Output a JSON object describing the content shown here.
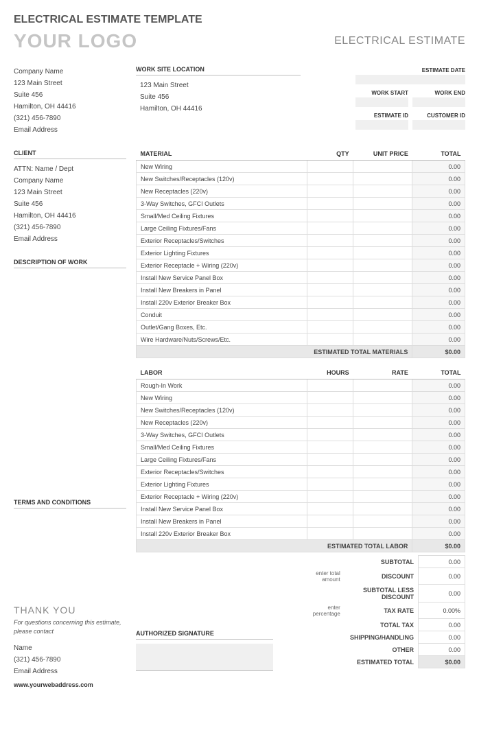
{
  "page_title": "ELECTRICAL ESTIMATE TEMPLATE",
  "logo_text": "YOUR LOGO",
  "doc_title": "ELECTRICAL ESTIMATE",
  "company": {
    "name": "Company Name",
    "street": "123 Main Street",
    "suite": "Suite 456",
    "city": "Hamilton, OH  44416",
    "phone": "(321) 456-7890",
    "email": "Email Address"
  },
  "client_head": "CLIENT",
  "client": {
    "attn": "ATTN: Name / Dept",
    "name": "Company Name",
    "street": "123 Main Street",
    "suite": "Suite 456",
    "city": "Hamilton, OH  44416",
    "phone": "(321) 456-7890",
    "email": "Email Address"
  },
  "desc_head": "DESCRIPTION OF WORK",
  "terms_head": "TERMS AND CONDITIONS",
  "thank_you": "THANK YOU",
  "footer_note": "For questions concerning this estimate, please contact",
  "contact": {
    "name": "Name",
    "phone": "(321) 456-7890",
    "email": "Email Address"
  },
  "web": "www.yourwebaddress.com",
  "worksite_head": "WORK SITE LOCATION",
  "worksite": {
    "street": "123 Main Street",
    "suite": "Suite 456",
    "city": "Hamilton, OH  44416"
  },
  "meta_labels": {
    "estimate_date": "ESTIMATE DATE",
    "work_start": "WORK START",
    "work_end": "WORK END",
    "estimate_id": "ESTIMATE ID",
    "customer_id": "CUSTOMER ID"
  },
  "material_headers": {
    "desc": "MATERIAL",
    "qty": "QTY",
    "price": "UNIT PRICE",
    "total": "TOTAL"
  },
  "material_rows": [
    "New Wiring",
    "New Switches/Receptacles (120v)",
    "New Receptacles (220v)",
    "3-Way Switches, GFCI Outlets",
    "Small/Med Ceiling Fixtures",
    "Large Ceiling Fixtures/Fans",
    "Exterior Receptacles/Switches",
    "Exterior Lighting Fixtures",
    "Exterior Receptacle + Wiring (220v)",
    "Install New Service Panel Box",
    "Install New Breakers in Panel",
    "Install 220v Exterior Breaker Box",
    "Conduit",
    "Outlet/Gang Boxes, Etc.",
    "Wire Hardware/Nuts/Screws/Etc."
  ],
  "material_total_label": "ESTIMATED TOTAL MATERIALS",
  "material_total": "$0.00",
  "labor_headers": {
    "desc": "LABOR",
    "hours": "HOURS",
    "rate": "RATE",
    "total": "TOTAL"
  },
  "labor_rows": [
    "Rough-In Work",
    "New Wiring",
    "New Switches/Receptacles (120v)",
    "New Receptacles (220v)",
    "3-Way Switches, GFCI Outlets",
    "Small/Med Ceiling Fixtures",
    "Large Ceiling Fixtures/Fans",
    "Exterior Receptacles/Switches",
    "Exterior Lighting Fixtures",
    "Exterior Receptacle + Wiring (220v)",
    "Install New Service Panel Box",
    "Install New Breakers in Panel",
    "Install 220v Exterior Breaker Box"
  ],
  "labor_total_label": "ESTIMATED TOTAL LABOR",
  "labor_total": "$0.00",
  "zero": "0.00",
  "summary": {
    "subtotal": "SUBTOTAL",
    "discount_hint": "enter total amount",
    "discount": "DISCOUNT",
    "subtotal_less": "SUBTOTAL LESS DISCOUNT",
    "taxrate_hint": "enter percentage",
    "taxrate": "TAX RATE",
    "taxrate_val": "0.00%",
    "totaltax": "TOTAL TAX",
    "shipping": "SHIPPING/HANDLING",
    "other": "OTHER",
    "est_total": "ESTIMATED TOTAL",
    "est_total_val": "$0.00"
  },
  "sig_head": "AUTHORIZED SIGNATURE"
}
